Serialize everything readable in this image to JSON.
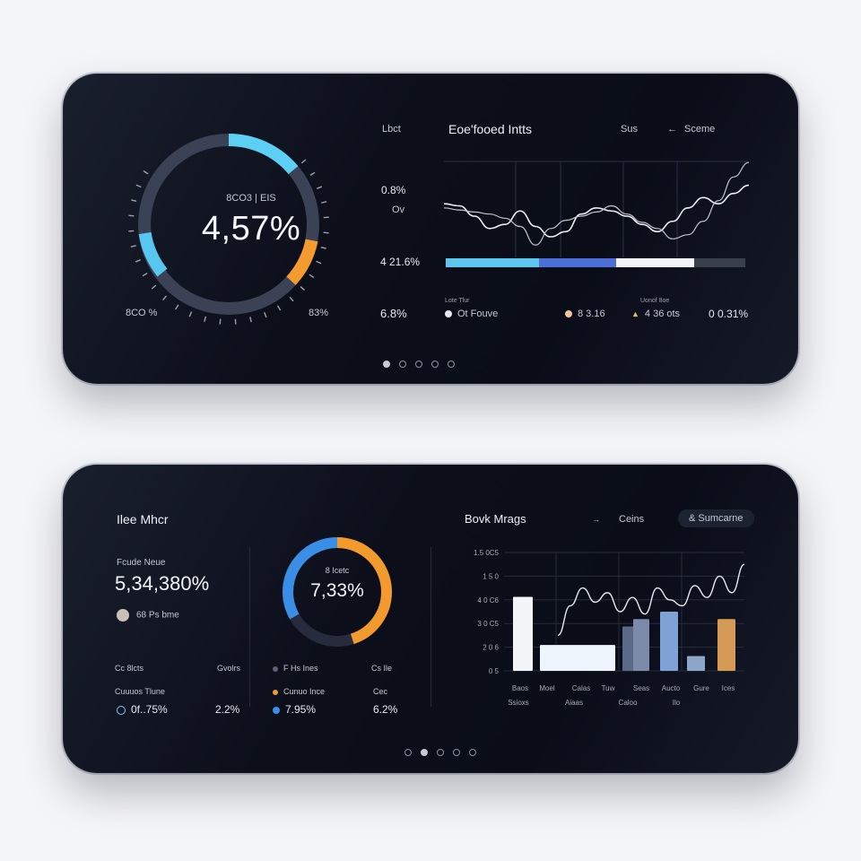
{
  "top_card": {
    "gauge": {
      "caption": "8CO3 | EIS",
      "value": "4,57%",
      "left_label": "8CO %",
      "right_label": "83%",
      "level_fraction": 0.57
    },
    "chart": {
      "top_left_label": "Lbct",
      "title": "Eoe'fooed Intts",
      "menu_items": [
        "Sus",
        "Sceme"
      ],
      "y_label_top": "0.8%",
      "y_label_small": "Ov",
      "y_label_mid": "4 21.6%",
      "progress_segments": [
        {
          "fraction": 0.31,
          "color": "#5cc8ef"
        },
        {
          "fraction": 0.26,
          "color": "#4b6fd6"
        },
        {
          "fraction": 0.26,
          "color": "#f2f4f8"
        },
        {
          "fraction": 0.17,
          "color": "#3a3f4e"
        }
      ]
    },
    "legend": {
      "left_value": "6.8%",
      "items": [
        {
          "small": "Lote Tlur",
          "label": "Ot Fouve",
          "color": "#e6e9f2"
        },
        {
          "small": "",
          "label": "8 3.16",
          "color": "#f0c59a"
        },
        {
          "small": "Uonof 8oe",
          "label": "4 36 ots",
          "color": "#e7c04a"
        }
      ],
      "right_value": "0 0.31%"
    },
    "pager_count": 5,
    "pager_active": 0
  },
  "bottom_card": {
    "title": "Ilee Mhcr",
    "stat_label": "Fcude Neue",
    "stat_value": "5,34,380%",
    "stat_meta": "68 Ps bme",
    "donut": {
      "caption": "8 Icetc",
      "value": "7,33%",
      "blue_fraction": 0.35,
      "orange_fraction": 0.45
    },
    "table": {
      "header": [
        "Cc 8lcts",
        "Gvolrs",
        "F Hs Ines",
        "Cs Ile"
      ],
      "sub_left": "Cuuuos Tlune",
      "sub_mid": "Cunuo Ince",
      "sub_right": "Cec",
      "row_values": [
        "0f..75%",
        "2.2%",
        "7.95%",
        "6.2%"
      ]
    },
    "chart": {
      "title": "Bovk Mrags",
      "menu_items": [
        "Ceins",
        "& Sumcarne"
      ],
      "menu_arrow": "→"
    },
    "pager_count": 5,
    "pager_active": 1
  },
  "chart_data": [
    {
      "type": "line",
      "title": "Eoe'fooed Intts",
      "x": [
        0,
        1,
        2,
        3,
        4,
        5,
        6,
        7,
        8,
        9,
        10,
        11,
        12,
        13,
        14,
        15,
        16,
        17,
        18,
        19,
        20
      ],
      "series": [
        {
          "values": [
            52,
            50,
            40,
            28,
            32,
            45,
            30,
            20,
            25,
            42,
            48,
            45,
            40,
            32,
            25,
            35,
            48,
            58,
            52,
            62,
            70
          ]
        },
        {
          "values": [
            48,
            46,
            44,
            42,
            38,
            30,
            12,
            28,
            36,
            40,
            44,
            50,
            42,
            34,
            28,
            18,
            22,
            35,
            55,
            78,
            92
          ]
        }
      ],
      "ylim": [
        0,
        100
      ],
      "grid": true
    },
    {
      "type": "bar",
      "title": "Bovk Mrags",
      "yticks": [
        "1.5 0C5",
        "1 5 0",
        "4 0 C6",
        "3 0 C5",
        "2 0 6",
        "0 5"
      ],
      "categories": [
        "Baos",
        "Moel",
        "Calas",
        "Tuw",
        "Seas",
        "Aucto",
        "Gure",
        "Ices"
      ],
      "categories_sub": [
        "Ssioxs",
        "Aiaas",
        "Caloo",
        "Ilo"
      ],
      "series": [
        {
          "name": "",
          "values": [
            2.0,
            0.7,
            0.8,
            1.2,
            1.4,
            1.6,
            0.4,
            1.4
          ]
        }
      ],
      "bar_colors": [
        "#f2f4f8",
        "#eef4fb",
        "#dfeaf6",
        "#5a6a86",
        "#7a8aa8",
        "#7ea2d6",
        "#8ea6c8",
        "#d59a55"
      ],
      "line": [
        30,
        55,
        70,
        58,
        66,
        50,
        62,
        48,
        70,
        60,
        55,
        72,
        62,
        80,
        66,
        90
      ],
      "ylim": [
        0,
        3.2
      ],
      "grid": true
    }
  ]
}
